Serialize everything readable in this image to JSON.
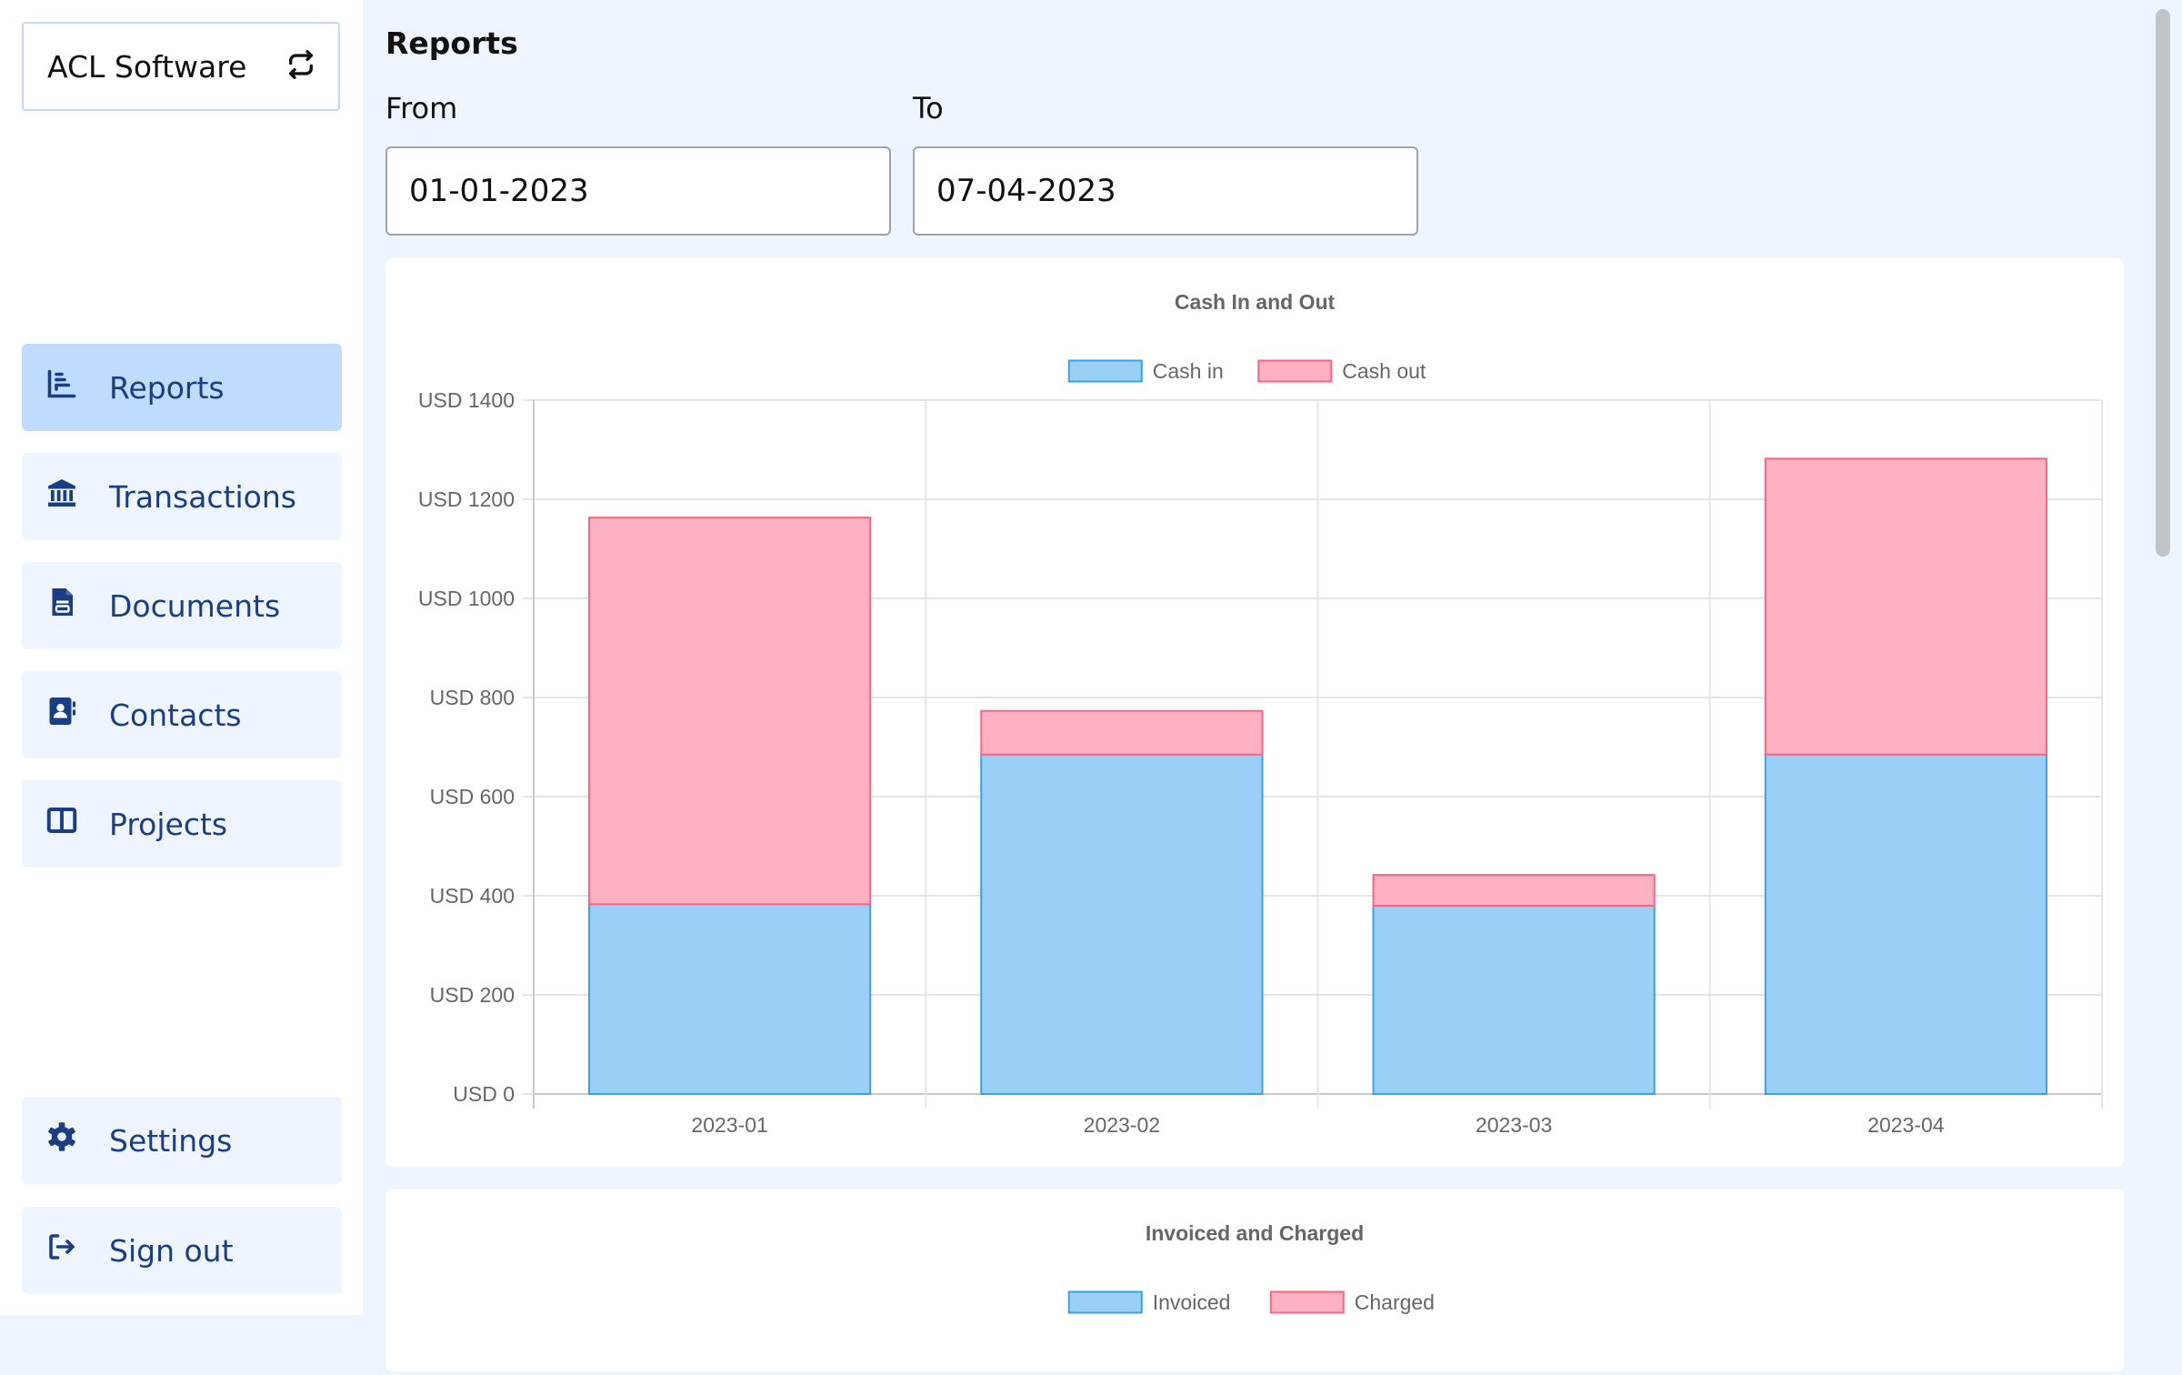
{
  "sidebar": {
    "company": "ACL Software",
    "nav": [
      {
        "label": "Reports",
        "icon": "bar-chart-icon",
        "active": true
      },
      {
        "label": "Transactions",
        "icon": "bank-icon"
      },
      {
        "label": "Documents",
        "icon": "document-icon"
      },
      {
        "label": "Contacts",
        "icon": "contact-book-icon"
      },
      {
        "label": "Projects",
        "icon": "columns-icon"
      }
    ],
    "bottom": [
      {
        "label": "Settings",
        "icon": "gear-icon"
      },
      {
        "label": "Sign out",
        "icon": "sign-out-icon"
      }
    ]
  },
  "page": {
    "title": "Reports",
    "from_label": "From",
    "to_label": "To",
    "from_value": "01-01-2023",
    "to_value": "07-04-2023"
  },
  "colors": {
    "cash_in": "#9ad0f5",
    "cash_in_border": "#36a2eb",
    "cash_out": "#ffb1c1",
    "cash_out_border": "#ff6384",
    "nav_text": "#1a3e86",
    "active_nav": "#bfdbfe"
  },
  "chart_data": [
    {
      "type": "bar",
      "stacked": true,
      "title": "Cash In and Out",
      "categories": [
        "2023-01",
        "2023-02",
        "2023-03",
        "2023-04"
      ],
      "series": [
        {
          "name": "Cash in",
          "values": [
            383,
            685,
            380,
            685
          ]
        },
        {
          "name": "Cash out",
          "values": [
            780,
            88,
            62,
            597
          ]
        }
      ],
      "ylim": [
        0,
        1400
      ],
      "y_ticks": [
        0,
        200,
        400,
        600,
        800,
        1000,
        1200,
        1400
      ],
      "y_tick_prefix": "USD ",
      "legend": "top",
      "grid": true
    },
    {
      "type": "bar",
      "stacked": true,
      "title": "Invoiced and Charged",
      "series": [
        {
          "name": "Invoiced",
          "values": []
        },
        {
          "name": "Charged",
          "values": []
        }
      ],
      "legend": "top"
    }
  ]
}
